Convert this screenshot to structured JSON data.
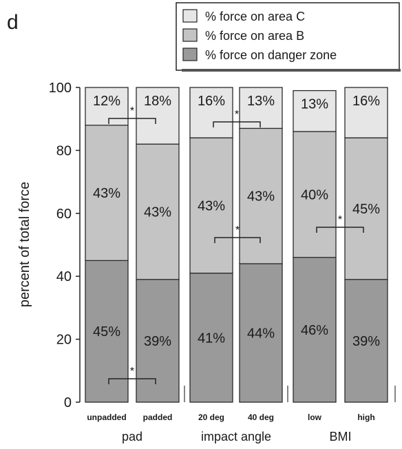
{
  "panel_label": "d",
  "chart_data": {
    "type": "bar",
    "stacked": true,
    "ylabel": "percent of total force",
    "ylim": [
      0,
      100
    ],
    "yticks": [
      0,
      20,
      40,
      60,
      80,
      100
    ],
    "categories": [
      "unpadded",
      "padded",
      "20 deg",
      "40 deg",
      "low",
      "high"
    ],
    "groups": [
      {
        "name": "pad",
        "categories": [
          "unpadded",
          "padded"
        ]
      },
      {
        "name": "impact angle",
        "categories": [
          "20 deg",
          "40 deg"
        ]
      },
      {
        "name": "BMI",
        "categories": [
          "low",
          "high"
        ]
      }
    ],
    "series": [
      {
        "name": "% force on danger zone",
        "color": "#9a9a9a",
        "values": [
          45,
          39,
          41,
          44,
          46,
          39
        ],
        "labels": [
          "45%",
          "39%",
          "41%",
          "44%",
          "46%",
          "39%"
        ]
      },
      {
        "name": "% force on area B",
        "color": "#c4c4c4",
        "values": [
          43,
          43,
          43,
          43,
          40,
          45
        ],
        "labels": [
          "43%",
          "43%",
          "43%",
          "43%",
          "40%",
          "45%"
        ]
      },
      {
        "name": "% force on area C",
        "color": "#e6e6e6",
        "values": [
          12,
          18,
          16,
          13,
          13,
          16
        ],
        "labels": [
          "12%",
          "18%",
          "16%",
          "13%",
          "13%",
          "16%"
        ]
      }
    ],
    "legend": {
      "position": "top-right",
      "entries": [
        "% force on area C",
        "% force on area B",
        "% force on danger zone"
      ]
    },
    "significance_marks": [
      {
        "between": [
          "unpadded",
          "padded"
        ],
        "series": "% force on area C",
        "mark": "*"
      },
      {
        "between": [
          "unpadded",
          "padded"
        ],
        "series": "% force on danger zone",
        "mark": "*"
      },
      {
        "between": [
          "20 deg",
          "40 deg"
        ],
        "series": "% force on area C",
        "mark": "*"
      },
      {
        "between": [
          "20 deg",
          "40 deg"
        ],
        "series": "% force on area B",
        "mark": "*"
      },
      {
        "between": [
          "low",
          "high"
        ],
        "series": "% force on area B",
        "mark": "*"
      }
    ],
    "grid": false
  }
}
